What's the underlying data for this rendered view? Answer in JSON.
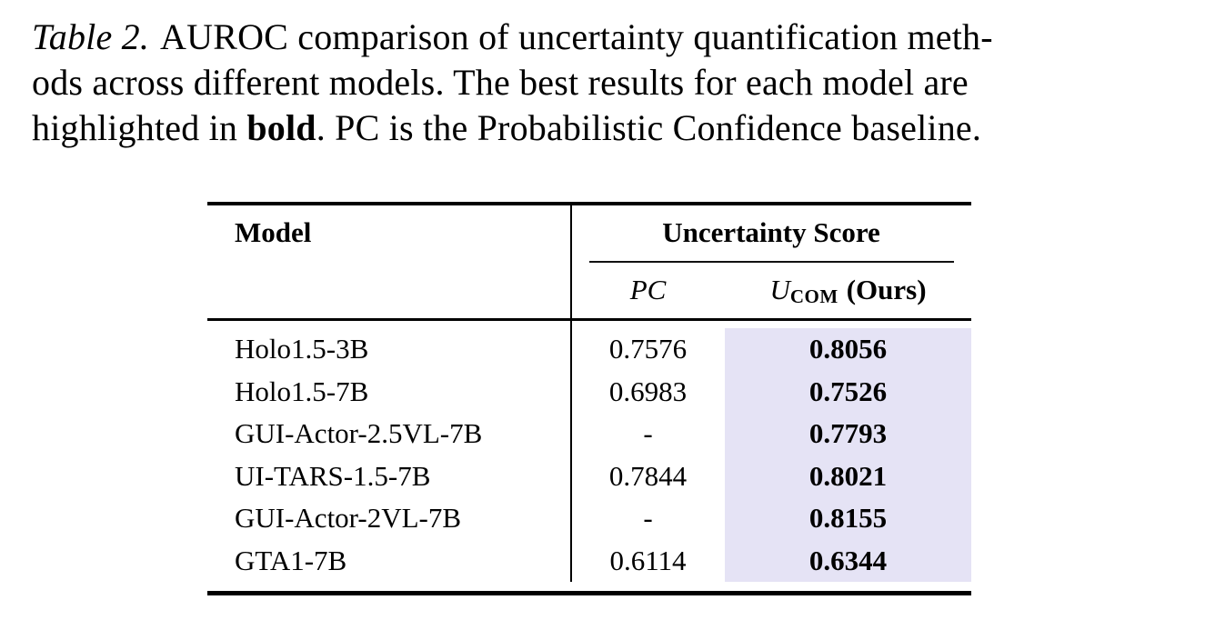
{
  "caption": {
    "label": "Table 2.",
    "line1_rest": "AUROC comparison of uncertainty quantification meth-",
    "line2": "ods across different models. The best results for each model are",
    "line3_pre": "highlighted in ",
    "line3_bold": "bold",
    "line3_post": ". PC is the Probabilistic Confidence baseline."
  },
  "table": {
    "col_model_header": "Model",
    "group_header": "Uncertainty Score",
    "pc_header": "PC",
    "u_symbol": "U",
    "u_subscript": "COM",
    "u_ours": "(Ours)",
    "highlight_color": "#E5E3F5",
    "rows": [
      {
        "model": "Holo1.5-3B",
        "pc": "0.7576",
        "ucom": "0.8056"
      },
      {
        "model": "Holo1.5-7B",
        "pc": "0.6983",
        "ucom": "0.7526"
      },
      {
        "model": "GUI-Actor-2.5VL-7B",
        "pc": "-",
        "ucom": "0.7793"
      },
      {
        "model": "UI-TARS-1.5-7B",
        "pc": "0.7844",
        "ucom": "0.8021"
      },
      {
        "model": "GUI-Actor-2VL-7B",
        "pc": "-",
        "ucom": "0.8155"
      },
      {
        "model": "GTA1-7B",
        "pc": "0.6114",
        "ucom": "0.6344"
      }
    ]
  }
}
